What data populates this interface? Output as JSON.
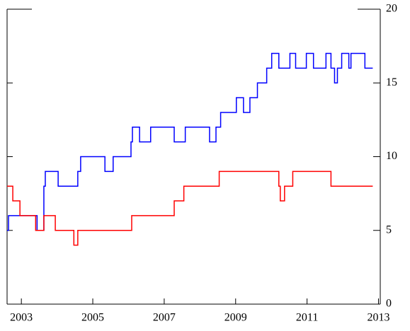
{
  "chart_data": {
    "type": "line",
    "step": "post",
    "xlim": [
      2002.6,
      2013.05
    ],
    "xticks": [
      2003,
      2005,
      2007,
      2009,
      2011,
      2013
    ],
    "ylim": [
      0,
      20
    ],
    "yticks": [
      0,
      5,
      10,
      15,
      20
    ],
    "y_axis_side": "right",
    "series": [
      {
        "color": "#0000ff",
        "x": [
          2002.6,
          2002.64,
          2003.44,
          2003.63,
          2003.67,
          2004.03,
          2004.58,
          2004.66,
          2005.34,
          2005.57,
          2006.07,
          2006.11,
          2006.31,
          2006.62,
          2007.28,
          2007.59,
          2008.27,
          2008.45,
          2008.58,
          2009.02,
          2009.22,
          2009.4,
          2009.61,
          2009.87,
          2010.01,
          2010.21,
          2010.52,
          2010.68,
          2010.98,
          2011.18,
          2011.53,
          2011.67,
          2011.77,
          2011.85,
          2011.97,
          2012.17,
          2012.23,
          2012.62,
          2012.84
        ],
        "values": [
          5,
          6,
          5,
          8,
          9,
          8,
          9,
          10,
          9,
          10,
          11,
          12,
          11,
          12,
          11,
          12,
          11,
          12,
          13,
          14,
          13,
          14,
          15,
          16,
          17,
          16,
          17,
          16,
          17,
          16,
          17,
          16,
          15,
          16,
          17,
          16,
          17,
          16,
          16
        ]
      },
      {
        "color": "#ff0000",
        "x": [
          2002.6,
          2002.76,
          2002.96,
          2003.4,
          2003.63,
          2003.95,
          2004.47,
          2004.58,
          2006.09,
          2007.28,
          2007.55,
          2008.54,
          2010.21,
          2010.25,
          2010.37,
          2010.6,
          2011.67,
          2012.84
        ],
        "values": [
          8,
          7,
          6,
          5,
          6,
          5,
          4,
          5,
          6,
          7,
          8,
          9,
          8,
          7,
          8,
          9,
          8,
          8
        ]
      }
    ]
  }
}
